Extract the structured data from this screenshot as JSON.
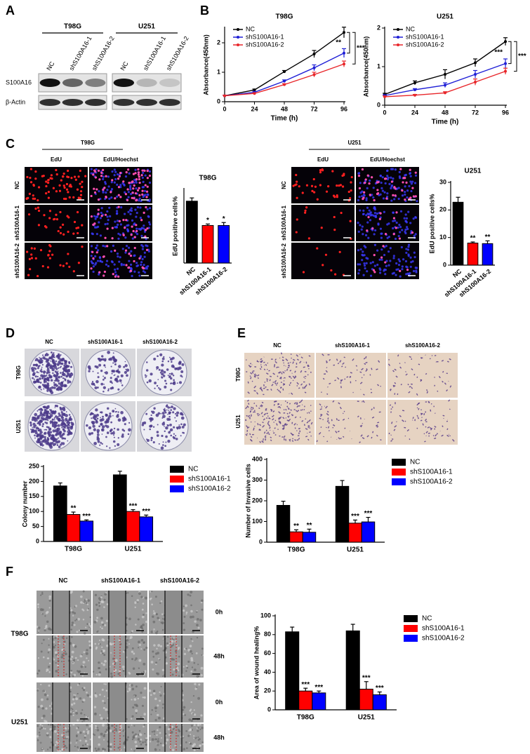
{
  "panel_labels": [
    "A",
    "B",
    "C",
    "D",
    "E",
    "F"
  ],
  "western_blot": {
    "cell_lines": [
      "T98G",
      "U251"
    ],
    "lanes": [
      "NC",
      "shS100A16-1",
      "shS100A16-2"
    ],
    "proteins": [
      "S100A16",
      "β-Actin"
    ]
  },
  "edu_images": {
    "cell_lines": [
      "T98G",
      "U251"
    ],
    "columns": [
      "EdU",
      "EdU/Hoechst"
    ],
    "rows": [
      "NC",
      "shS100A16-1",
      "shS100A16-2"
    ]
  },
  "colony_images": {
    "columns": [
      "NC",
      "shS100A16-1",
      "shS100A16-2"
    ],
    "rows": [
      "T98G",
      "U251"
    ]
  },
  "invasion_images": {
    "columns": [
      "NC",
      "shS100A16-1",
      "shS100A16-2"
    ],
    "rows": [
      "T98G",
      "U251"
    ]
  },
  "wound_images": {
    "columns": [
      "NC",
      "shS100A16-1",
      "shS100A16-2"
    ],
    "cell_lines": [
      "T98G",
      "U251"
    ],
    "times": [
      "0h",
      "48h"
    ]
  },
  "chart_data": [
    {
      "type": "line",
      "title": "T98G",
      "x_label": "Time (h)",
      "y_label": "Absorbance(450nm)",
      "x": [
        0,
        24,
        48,
        72,
        96
      ],
      "xlim": [
        0,
        96
      ],
      "xticks": [
        0,
        24,
        48,
        72,
        96
      ],
      "ylim": [
        0,
        2.5
      ],
      "yticks": [
        0,
        1,
        2
      ],
      "legend": "upper left",
      "series": [
        {
          "name": "NC",
          "color": "#000000",
          "values": [
            0.2,
            0.4,
            1.02,
            1.62,
            2.35
          ],
          "errors": [
            0.02,
            0.03,
            0.04,
            0.12,
            0.18
          ]
        },
        {
          "name": "shS100A16-1",
          "color": "#1f1fd6",
          "values": [
            0.2,
            0.32,
            0.7,
            1.15,
            1.65
          ],
          "errors": [
            0.02,
            0.03,
            0.04,
            0.1,
            0.15
          ]
        },
        {
          "name": "shS100A16-2",
          "color": "#e8262a",
          "values": [
            0.2,
            0.28,
            0.58,
            0.92,
            1.28
          ],
          "errors": [
            0.02,
            0.02,
            0.03,
            0.08,
            0.1
          ]
        }
      ],
      "annotations": [
        "**",
        "***"
      ]
    },
    {
      "type": "line",
      "title": "U251",
      "x_label": "Time (h)",
      "y_label": "Absorbance(450nm)",
      "x": [
        0,
        24,
        48,
        72,
        96
      ],
      "xlim": [
        0,
        96
      ],
      "xticks": [
        0,
        24,
        48,
        72,
        96
      ],
      "ylim": [
        0,
        2
      ],
      "yticks": [
        0,
        1,
        2
      ],
      "legend": "upper left",
      "series": [
        {
          "name": "NC",
          "color": "#000000",
          "values": [
            0.28,
            0.58,
            0.8,
            1.1,
            1.65
          ],
          "errors": [
            0.03,
            0.05,
            0.12,
            0.1,
            0.1
          ]
        },
        {
          "name": "shS100A16-1",
          "color": "#1f1fd6",
          "values": [
            0.25,
            0.4,
            0.52,
            0.8,
            1.08
          ],
          "errors": [
            0.02,
            0.03,
            0.06,
            0.1,
            0.12
          ]
        },
        {
          "name": "shS100A16-2",
          "color": "#e8262a",
          "values": [
            0.22,
            0.26,
            0.32,
            0.6,
            0.88
          ],
          "errors": [
            0.02,
            0.02,
            0.03,
            0.08,
            0.08
          ]
        }
      ],
      "annotations": [
        "***",
        "***"
      ]
    },
    {
      "type": "bar",
      "title": "T98G",
      "y_label": "EdU positive cells%",
      "categories": [
        "NC",
        "shS100A16-1",
        "shS100A16-2"
      ],
      "values": [
        42,
        25.5,
        25.5
      ],
      "errors": [
        2.2,
        1,
        2
      ],
      "colors": [
        "#000000",
        "#ff0000",
        "#0000ff"
      ],
      "significance": [
        null,
        "*",
        "*"
      ],
      "ylim": [
        0,
        50
      ]
    },
    {
      "type": "bar",
      "title": "U251",
      "y_label": "EdU positive cells%",
      "categories": [
        "NC",
        "shS100A16-1",
        "shS100A16-2"
      ],
      "values": [
        22.8,
        8,
        7.8
      ],
      "errors": [
        1.8,
        0.4,
        1
      ],
      "colors": [
        "#000000",
        "#ff0000",
        "#0000ff"
      ],
      "significance": [
        null,
        "**",
        "**"
      ],
      "ylim": [
        0,
        30
      ],
      "yticks": [
        0,
        10,
        20,
        30
      ]
    },
    {
      "type": "grouped_bar",
      "y_label": "Colony number",
      "categories": [
        "T98G",
        "U251"
      ],
      "ylim": [
        0,
        250
      ],
      "yticks": [
        0,
        50,
        100,
        150,
        200,
        250
      ],
      "legend": "right",
      "series": [
        {
          "name": "NC",
          "color": "#000000",
          "values": [
            185,
            222
          ],
          "errors": [
            10,
            12
          ],
          "significance": [
            null,
            null
          ]
        },
        {
          "name": "shS100A16-1",
          "color": "#ff0000",
          "values": [
            90,
            100
          ],
          "errors": [
            8,
            6
          ],
          "significance": [
            "**",
            "***"
          ]
        },
        {
          "name": "shS100A16-2",
          "color": "#0000ff",
          "values": [
            68,
            82
          ],
          "errors": [
            4,
            6
          ],
          "significance": [
            "***",
            "***"
          ]
        }
      ]
    },
    {
      "type": "grouped_bar",
      "y_label": "Number of Invasive cells",
      "categories": [
        "T98G",
        "U251"
      ],
      "ylim": [
        0,
        400
      ],
      "yticks": [
        0,
        100,
        200,
        300,
        400
      ],
      "legend": "right",
      "series": [
        {
          "name": "NC",
          "color": "#000000",
          "values": [
            178,
            270
          ],
          "errors": [
            20,
            28
          ],
          "significance": [
            null,
            null
          ]
        },
        {
          "name": "shS100A16-1",
          "color": "#ff0000",
          "values": [
            50,
            92
          ],
          "errors": [
            10,
            15
          ],
          "significance": [
            "**",
            "***"
          ]
        },
        {
          "name": "shS100A16-2",
          "color": "#0000ff",
          "values": [
            48,
            98
          ],
          "errors": [
            15,
            22
          ],
          "significance": [
            "**",
            "***"
          ]
        }
      ]
    },
    {
      "type": "grouped_bar",
      "y_label": "Area of wound healing%",
      "categories": [
        "T98G",
        "U251"
      ],
      "ylim": [
        0,
        100
      ],
      "yticks": [
        0,
        20,
        40,
        60,
        80,
        100
      ],
      "legend": "right",
      "series": [
        {
          "name": "NC",
          "color": "#000000",
          "values": [
            83,
            84
          ],
          "errors": [
            5,
            7
          ],
          "significance": [
            null,
            null
          ]
        },
        {
          "name": "shS100A16-1",
          "color": "#ff0000",
          "values": [
            20,
            22
          ],
          "errors": [
            3,
            8
          ],
          "significance": [
            "***",
            "***"
          ]
        },
        {
          "name": "shS100A16-2",
          "color": "#0000ff",
          "values": [
            18,
            16
          ],
          "errors": [
            2,
            3
          ],
          "significance": [
            "***",
            "***"
          ]
        }
      ]
    }
  ]
}
